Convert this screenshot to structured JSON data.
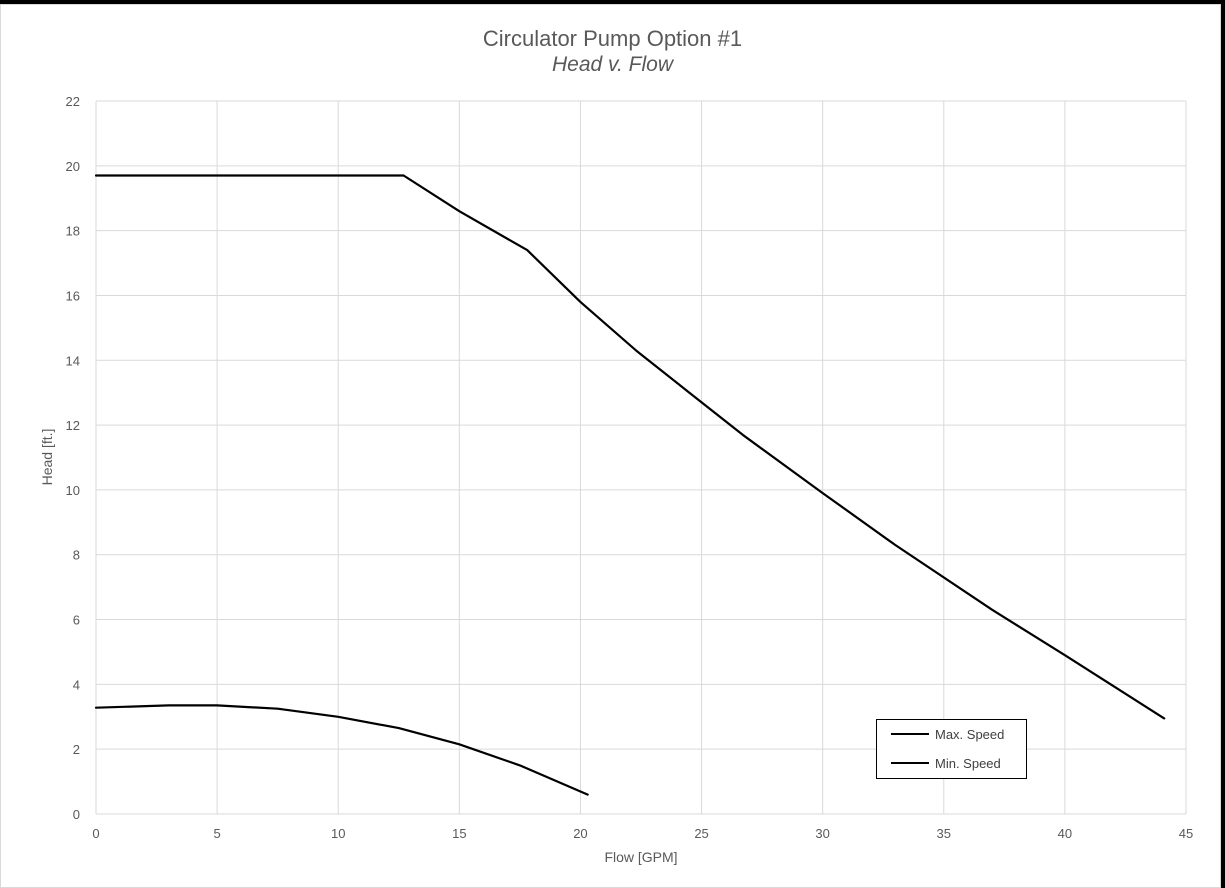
{
  "chart_data": {
    "type": "line",
    "title": "Circulator Pump Option #1",
    "subtitle": "Head v. Flow",
    "xlabel": "Flow [GPM]",
    "ylabel": "Head [ft.]",
    "xlim": [
      0,
      45
    ],
    "ylim": [
      0,
      22
    ],
    "xticks": [
      0,
      5,
      10,
      15,
      20,
      25,
      30,
      35,
      40,
      45
    ],
    "yticks": [
      0,
      2,
      4,
      6,
      8,
      10,
      12,
      14,
      16,
      18,
      20,
      22
    ],
    "grid": true,
    "legend_position": "bottom-right",
    "series": [
      {
        "name": "Max. Speed",
        "color": "#000000",
        "x": [
          0,
          5,
          10,
          12.7,
          15,
          17.8,
          20,
          22.3,
          24.5,
          26.7,
          30,
          33,
          37,
          40,
          44.1
        ],
        "y": [
          19.7,
          19.7,
          19.7,
          19.7,
          18.6,
          17.4,
          15.8,
          14.3,
          13.0,
          11.7,
          9.9,
          8.3,
          6.3,
          4.9,
          2.95
        ]
      },
      {
        "name": "Min. Speed",
        "color": "#000000",
        "x": [
          0,
          3,
          5,
          7.5,
          10,
          12.5,
          15,
          17.5,
          20.3
        ],
        "y": [
          3.28,
          3.35,
          3.35,
          3.25,
          3.0,
          2.65,
          2.15,
          1.5,
          0.6
        ]
      }
    ]
  }
}
